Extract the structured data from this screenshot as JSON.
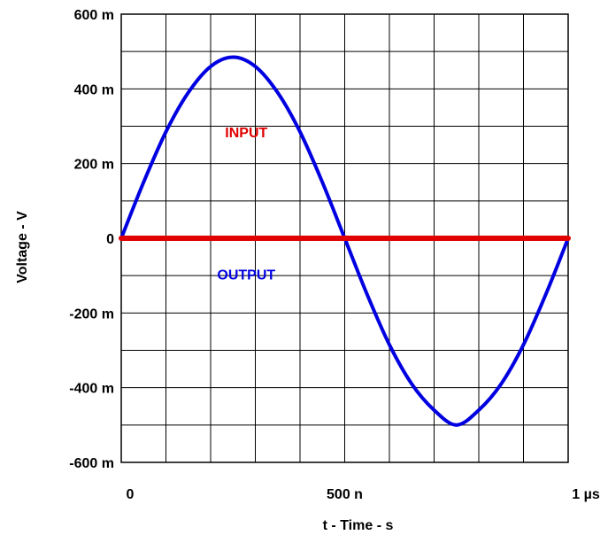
{
  "chart_data": {
    "type": "line",
    "title": "",
    "xlabel": "t - Time - s",
    "ylabel": "Voltage - V",
    "xlim": [
      0,
      1e-06
    ],
    "ylim": [
      -0.6,
      0.6
    ],
    "grid": true,
    "x_ticks": [
      {
        "value": 0,
        "label": "0"
      },
      {
        "value": 5e-07,
        "label": "500 n"
      },
      {
        "value": 1e-06,
        "label": "1 µs"
      }
    ],
    "x_grid_values": [
      0,
      1e-07,
      2e-07,
      3e-07,
      4e-07,
      5e-07,
      6e-07,
      7e-07,
      8e-07,
      9e-07,
      1e-06
    ],
    "y_ticks": [
      {
        "value": 0.6,
        "label": "600 m"
      },
      {
        "value": 0.4,
        "label": "400 m"
      },
      {
        "value": 0.2,
        "label": "200 m"
      },
      {
        "value": 0,
        "label": "0"
      },
      {
        "value": -0.2,
        "label": "-200 m"
      },
      {
        "value": -0.4,
        "label": "-400 m"
      },
      {
        "value": -0.6,
        "label": "-600 m"
      }
    ],
    "series": [
      {
        "name": "INPUT",
        "color": "#e00000",
        "x": [
          0,
          1e-06
        ],
        "y": [
          0,
          0
        ]
      },
      {
        "name": "OUTPUT",
        "color": "#0000e0",
        "x": [
          0,
          5e-08,
          1e-07,
          1.5e-07,
          2e-07,
          2.5e-07,
          3e-07,
          3.5e-07,
          4e-07,
          4.5e-07,
          5e-07,
          5.5e-07,
          6e-07,
          6.5e-07,
          7e-07,
          7.5e-07,
          8e-07,
          8.5e-07,
          9e-07,
          9.5e-07,
          1e-06
        ],
        "y": [
          0,
          0.15,
          0.285,
          0.39,
          0.46,
          0.485,
          0.46,
          0.39,
          0.285,
          0.15,
          0,
          -0.15,
          -0.285,
          -0.39,
          -0.46,
          -0.5,
          -0.46,
          -0.39,
          -0.285,
          -0.15,
          0
        ]
      }
    ],
    "annotations": [
      {
        "text": "INPUT",
        "color": "#e00000",
        "x": 2.6e-07,
        "y": 0.27
      },
      {
        "text": "OUTPUT",
        "color": "#0000e0",
        "x": 2.6e-07,
        "y": -0.11
      }
    ]
  }
}
